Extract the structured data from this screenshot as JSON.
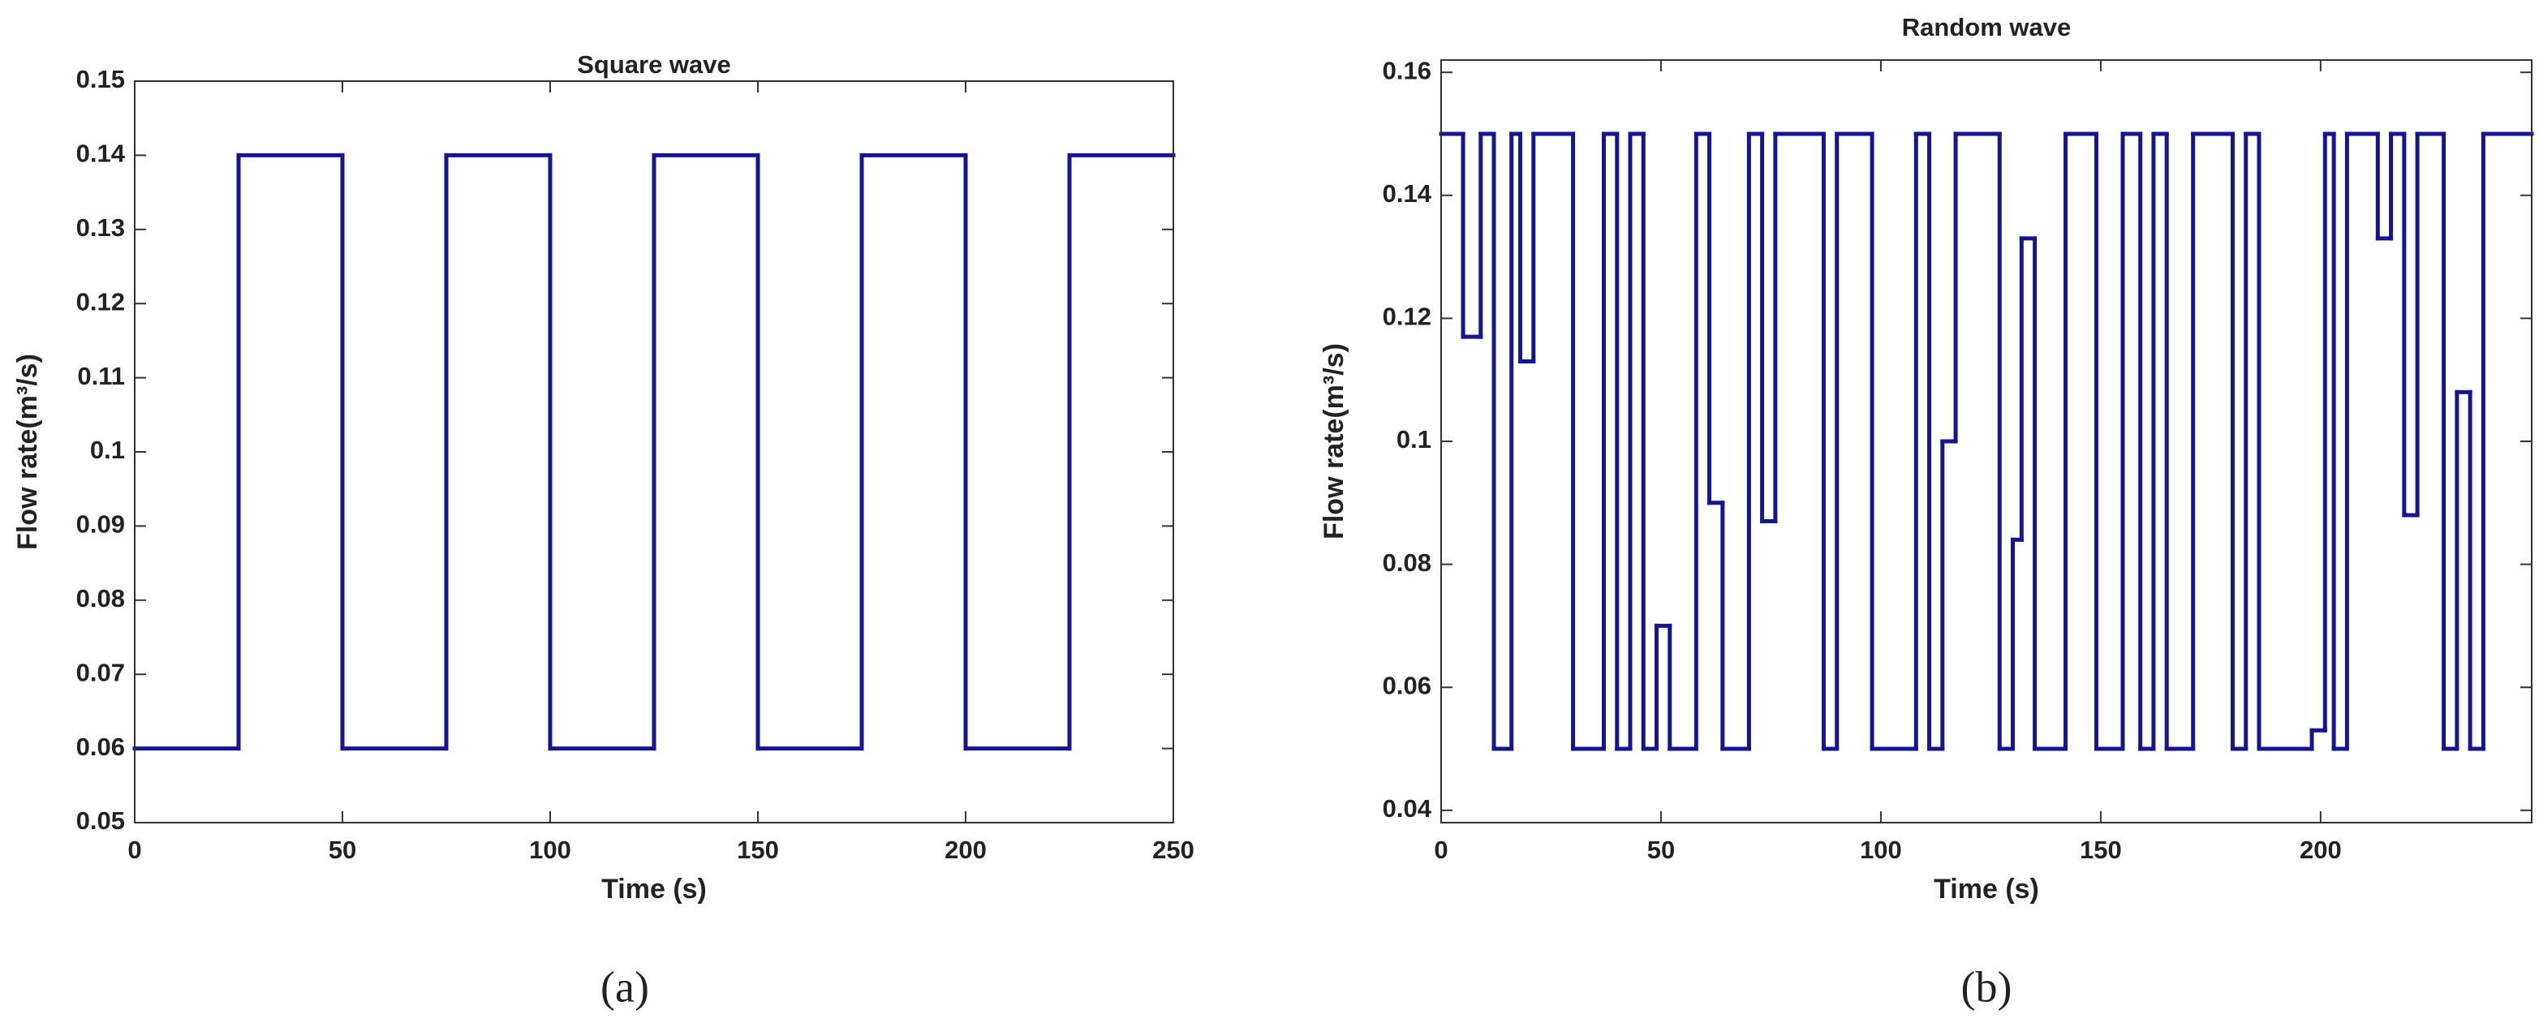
{
  "chart_data": [
    {
      "type": "line",
      "drawstyle": "steps-post",
      "title": "Square wave",
      "xlabel": "Time (s)",
      "ylabel": "Flow rate(m³/s)",
      "caption": "(a)",
      "x": [
        0,
        25,
        50,
        75,
        100,
        125,
        150,
        175,
        200,
        225
      ],
      "values": [
        0.06,
        0.14,
        0.06,
        0.14,
        0.06,
        0.14,
        0.06,
        0.14,
        0.06,
        0.14
      ],
      "color": "#16168a",
      "xlim": [
        0,
        250
      ],
      "xticks": [
        0,
        50,
        100,
        150,
        200,
        250
      ],
      "ylim": [
        0.05,
        0.15
      ],
      "yticks": [
        0.05,
        0.06,
        0.07,
        0.08,
        0.09,
        0.1,
        0.11,
        0.12,
        0.13,
        0.14,
        0.15
      ]
    },
    {
      "type": "line",
      "drawstyle": "steps-post",
      "title": "Random wave",
      "xlabel": "Time (s)",
      "ylabel": "Flow rate(m³/s)",
      "caption": "(b)",
      "x": [
        0,
        5,
        9,
        12,
        16,
        18,
        21,
        30,
        37,
        40,
        43,
        46,
        49,
        52,
        58,
        61,
        64,
        70,
        73,
        76,
        87,
        90,
        98,
        108,
        111,
        114,
        117,
        127,
        130,
        132,
        135,
        142,
        149,
        155,
        159,
        162,
        165,
        171,
        180,
        183,
        186,
        198,
        201,
        203,
        206,
        213,
        216,
        219,
        222,
        228,
        231,
        234,
        237
      ],
      "values": [
        0.15,
        0.117,
        0.15,
        0.05,
        0.15,
        0.113,
        0.15,
        0.05,
        0.15,
        0.05,
        0.15,
        0.05,
        0.07,
        0.05,
        0.15,
        0.09,
        0.05,
        0.15,
        0.087,
        0.15,
        0.05,
        0.15,
        0.05,
        0.15,
        0.05,
        0.1,
        0.15,
        0.05,
        0.084,
        0.133,
        0.05,
        0.15,
        0.05,
        0.15,
        0.05,
        0.15,
        0.05,
        0.15,
        0.05,
        0.15,
        0.05,
        0.053,
        0.15,
        0.05,
        0.15,
        0.133,
        0.15,
        0.088,
        0.15,
        0.05,
        0.108,
        0.05,
        0.15
      ],
      "color": "#16168a",
      "xlim": [
        0,
        248
      ],
      "xticks": [
        0,
        50,
        100,
        150,
        200
      ],
      "ylim": [
        0.038,
        0.162
      ],
      "yticks": [
        0.04,
        0.06,
        0.08,
        0.1,
        0.12,
        0.14,
        0.16
      ]
    }
  ]
}
